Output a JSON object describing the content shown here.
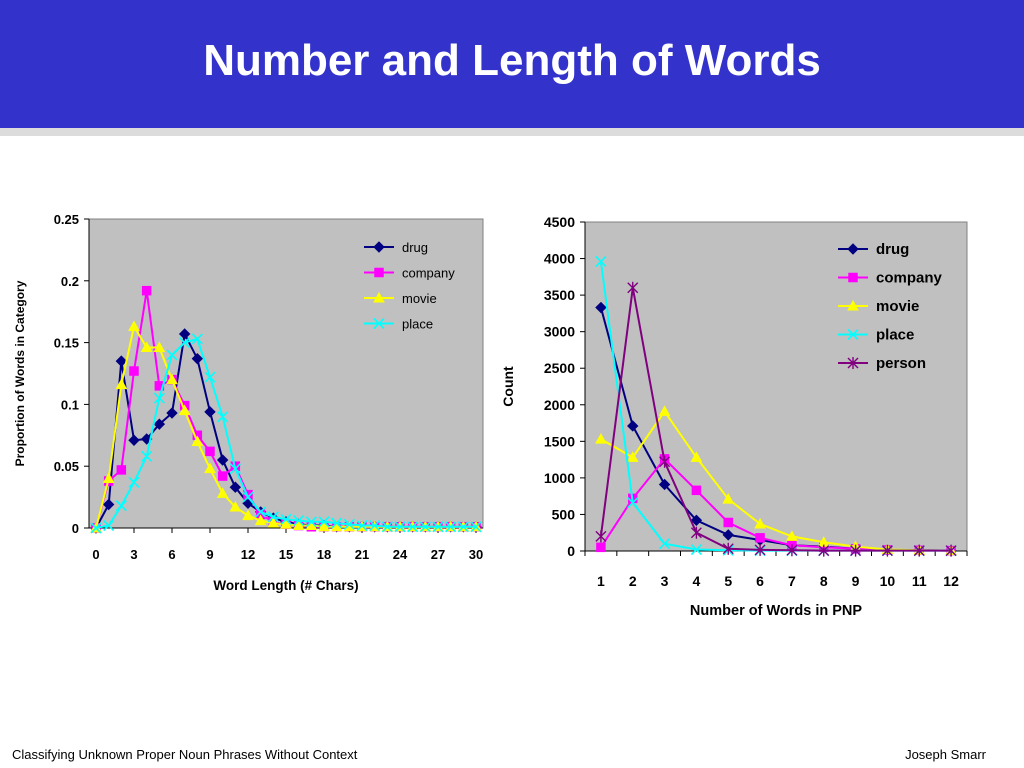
{
  "slide": {
    "title": "Number and Length of Words",
    "footer_left": "Classifying Unknown Proper Noun Phrases Without Context",
    "footer_right": "Joseph Smarr"
  },
  "chart_data": [
    {
      "type": "line",
      "xlabel": "Word Length (# Chars)",
      "ylabel": "Proportion of Words in Category",
      "xlim": [
        0,
        30
      ],
      "ylim": [
        0,
        0.25
      ],
      "x_ticks": [
        0,
        3,
        6,
        9,
        12,
        15,
        18,
        21,
        24,
        27,
        30
      ],
      "y_ticks": [
        0,
        0.05,
        0.1,
        0.15,
        0.2,
        0.25
      ],
      "y_tick_labels": [
        "0",
        "0.05",
        "0.1",
        "0.15",
        "0.2",
        "0.25"
      ],
      "grid": false,
      "legend_position": "top-right",
      "x": [
        0,
        1,
        2,
        3,
        4,
        5,
        6,
        7,
        8,
        9,
        10,
        11,
        12,
        13,
        14,
        15,
        16,
        17,
        18,
        19,
        20,
        21,
        22,
        23,
        24,
        25,
        26,
        27,
        28,
        29,
        30
      ],
      "series": [
        {
          "name": "drug",
          "color": "#000080",
          "marker": "diamond",
          "values": [
            0,
            0.019,
            0.135,
            0.071,
            0.072,
            0.084,
            0.093,
            0.157,
            0.137,
            0.094,
            0.055,
            0.033,
            0.02,
            0.013,
            0.008,
            0.005,
            0.003,
            0.002,
            0.002,
            0.001,
            0.001,
            0.001,
            0.001,
            0.001,
            0.001,
            0.001,
            0.001,
            0.001,
            0.001,
            0.001,
            0.001
          ]
        },
        {
          "name": "company",
          "color": "#ff00ff",
          "marker": "square",
          "values": [
            0,
            0.038,
            0.047,
            0.127,
            0.192,
            0.115,
            0.12,
            0.099,
            0.075,
            0.062,
            0.042,
            0.05,
            0.027,
            0.011,
            0.005,
            0.003,
            0.002,
            0.001,
            0.001,
            0.001,
            0.001,
            0.001,
            0.001,
            0.001,
            0.001,
            0.001,
            0.001,
            0.001,
            0.001,
            0.001,
            0.001
          ]
        },
        {
          "name": "movie",
          "color": "#ffff00",
          "marker": "triangle",
          "values": [
            0,
            0.04,
            0.116,
            0.163,
            0.146,
            0.146,
            0.12,
            0.095,
            0.07,
            0.048,
            0.028,
            0.017,
            0.01,
            0.006,
            0.004,
            0.003,
            0.002,
            0.002,
            0.001,
            0.001,
            0.001,
            0.001,
            0.001,
            0.001,
            0.001,
            0.001,
            0.001,
            0.001,
            0.001,
            0.001,
            0.001
          ]
        },
        {
          "name": "place",
          "color": "#00ffff",
          "marker": "x",
          "values": [
            0,
            0.002,
            0.018,
            0.037,
            0.058,
            0.105,
            0.14,
            0.15,
            0.153,
            0.122,
            0.09,
            0.048,
            0.025,
            0.013,
            0.009,
            0.007,
            0.006,
            0.005,
            0.005,
            0.004,
            0.003,
            0.002,
            0.002,
            0.001,
            0.001,
            0.001,
            0.001,
            0.001,
            0.001,
            0.001,
            0.001
          ]
        }
      ]
    },
    {
      "type": "line",
      "xlabel": "Number of Words in PNP",
      "ylabel": "Count",
      "ylim": [
        0,
        4500
      ],
      "y_ticks": [
        0,
        500,
        1000,
        1500,
        2000,
        2500,
        3000,
        3500,
        4000,
        4500
      ],
      "grid": false,
      "legend_position": "top-right",
      "categories": [
        "1",
        "2",
        "3",
        "4",
        "5",
        "6",
        "7",
        "8",
        "9",
        "10",
        "11",
        "12"
      ],
      "series": [
        {
          "name": "drug",
          "color": "#000080",
          "marker": "diamond",
          "values": [
            3330,
            1710,
            910,
            420,
            220,
            150,
            80,
            60,
            30,
            15,
            10,
            5
          ]
        },
        {
          "name": "company",
          "color": "#ff00ff",
          "marker": "square",
          "values": [
            50,
            720,
            1260,
            830,
            390,
            180,
            80,
            50,
            30,
            15,
            10,
            5
          ]
        },
        {
          "name": "movie",
          "color": "#ffff00",
          "marker": "triangle",
          "values": [
            1530,
            1280,
            1910,
            1280,
            710,
            370,
            200,
            120,
            60,
            20,
            10,
            5
          ]
        },
        {
          "name": "place",
          "color": "#00ffff",
          "marker": "x",
          "values": [
            3960,
            660,
            100,
            20,
            10,
            5,
            5,
            5,
            5,
            5,
            5,
            5
          ]
        },
        {
          "name": "person",
          "color": "#800080",
          "marker": "star",
          "values": [
            200,
            3600,
            1220,
            250,
            30,
            15,
            10,
            5,
            5,
            5,
            5,
            5
          ]
        }
      ]
    }
  ]
}
